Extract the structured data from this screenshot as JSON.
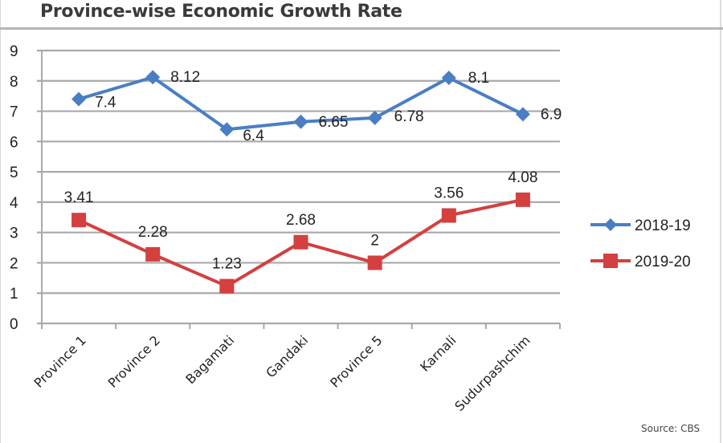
{
  "chart_data": {
    "type": "line",
    "title": "Province-wise Economic Growth Rate",
    "xlabel": "",
    "ylabel": "",
    "categories": [
      "Province 1",
      "Province 2",
      "Bagamati",
      "Gandaki",
      "Province 5",
      "Karnali",
      "Sudurpashchim"
    ],
    "series": [
      {
        "name": "2018-19",
        "color": "#4a7ec4",
        "marker": "diamond",
        "values": [
          7.4,
          8.12,
          6.4,
          6.65,
          6.78,
          8.1,
          6.9
        ],
        "labels": [
          "7.4",
          "8.12",
          "6.4",
          "6.65",
          "6.78",
          "8.1",
          "6.9"
        ]
      },
      {
        "name": "2019-20",
        "color": "#d43f3f",
        "marker": "square",
        "values": [
          3.41,
          2.28,
          1.23,
          2.68,
          2,
          3.56,
          4.08
        ],
        "labels": [
          "3.41",
          "2.28",
          "1.23",
          "2.68",
          "2",
          "3.56",
          "4.08"
        ]
      }
    ],
    "ylim": [
      0,
      9
    ],
    "yticks": [
      "0",
      "1",
      "2",
      "3",
      "4",
      "5",
      "6",
      "7",
      "8",
      "9"
    ],
    "grid": true,
    "legend": "right"
  },
  "source": "Source: CBS"
}
